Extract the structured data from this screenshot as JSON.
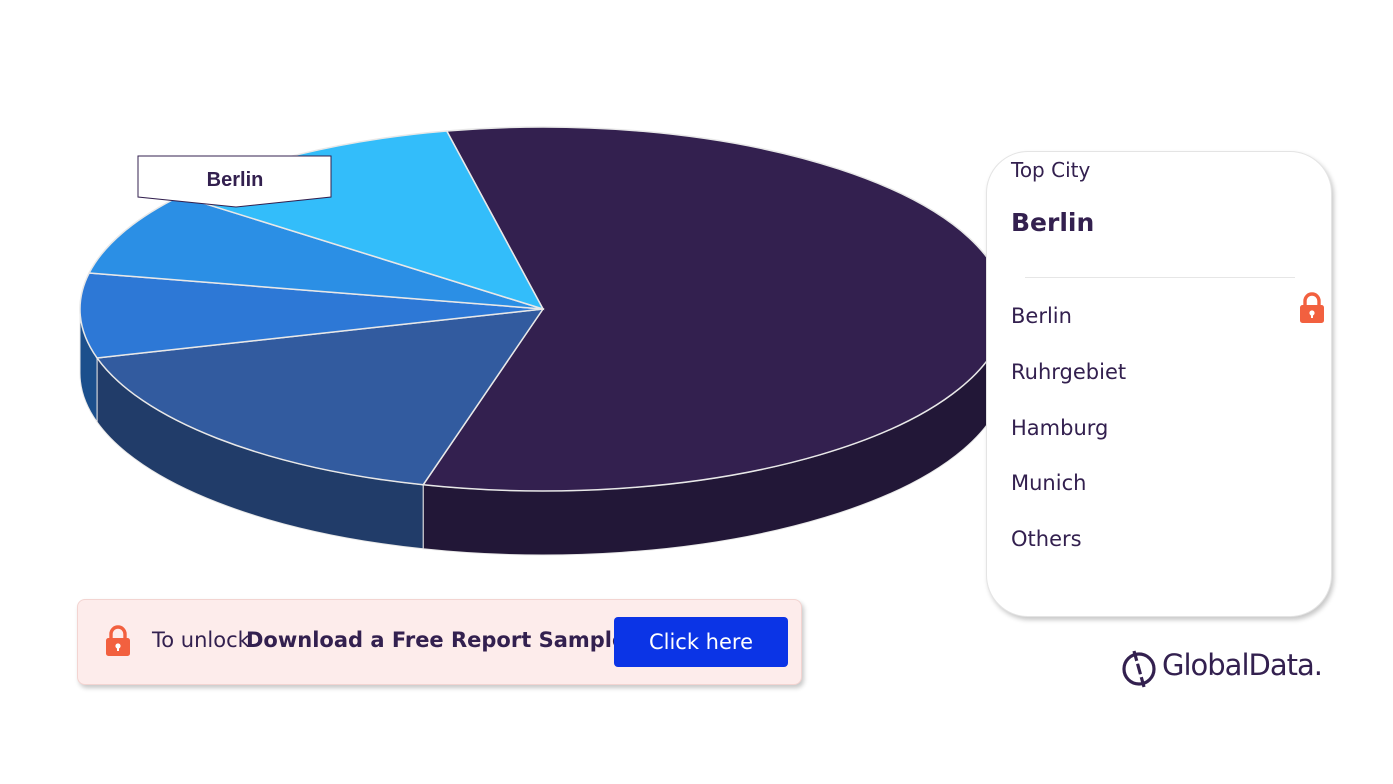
{
  "chart_data": {
    "type": "pie",
    "style": "3d",
    "title": "",
    "categories": [
      "Berlin",
      "Ruhrgebiet",
      "Hamburg",
      "Munich",
      "Others"
    ],
    "values": [
      57.5,
      16.5,
      7.5,
      7.5,
      11.0
    ],
    "callout": "Berlin"
  },
  "colors": {
    "slices": [
      "#33204f",
      "#325b9f",
      "#2d78d6",
      "#2b8fe5",
      "#33bdfa"
    ],
    "slice_sides": [
      "#221737",
      "#213c69",
      "#1b4f8c",
      "#0f3658",
      "#134b66"
    ],
    "accent": "#0b34e6",
    "lock": "#f2603f",
    "text": "#33204f"
  },
  "legend": {
    "top_label": "Top City",
    "top_value": "Berlin",
    "items": [
      "Berlin",
      "Ruhrgebiet",
      "Hamburg",
      "Munich",
      "Others"
    ]
  },
  "unlock": {
    "prefix": "To unlock",
    "strong": "Download a Free Report Sample",
    "button": "Click here"
  },
  "brand": {
    "name": "GlobalData."
  },
  "icons": {
    "lock": "lock-icon",
    "brand": "globaldata-logo-icon"
  }
}
